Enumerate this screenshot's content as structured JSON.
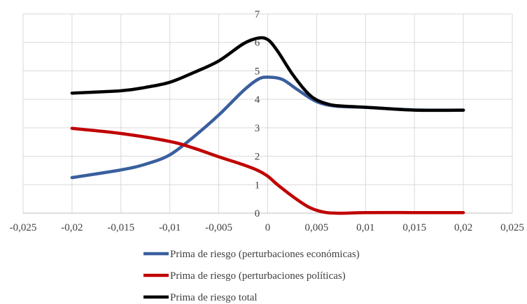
{
  "chart_data": {
    "type": "line",
    "title": "",
    "xlabel": "",
    "ylabel": "",
    "xlim": [
      -0.025,
      0.025
    ],
    "ylim": [
      0,
      7
    ],
    "x_ticks": [
      -0.025,
      -0.02,
      -0.015,
      -0.01,
      -0.005,
      0,
      0.005,
      0.01,
      0.015,
      0.02,
      0.025
    ],
    "x_tick_labels": [
      "-0,025",
      "-0,02",
      "-0,015",
      "-0,01",
      "-0,005",
      "0",
      "0,005",
      "0,01",
      "0,015",
      "0,02",
      "0,025"
    ],
    "y_ticks": [
      0,
      1,
      2,
      3,
      4,
      5,
      6,
      7
    ],
    "y_tick_labels": [
      "0",
      "1",
      "2",
      "3",
      "4",
      "5",
      "6",
      "7"
    ],
    "grid": true,
    "legend_position": "bottom",
    "series": [
      {
        "name": "Prima de riesgo (perturbaciones económicas)",
        "color": "#3a5f9e",
        "x": [
          -0.02,
          -0.015,
          -0.0125,
          -0.01,
          -0.0075,
          -0.005,
          -0.0025,
          -0.001,
          0,
          0.0015,
          0.003,
          0.005,
          0.007,
          0.01,
          0.015,
          0.02
        ],
        "y": [
          1.25,
          1.52,
          1.72,
          2.05,
          2.7,
          3.45,
          4.3,
          4.7,
          4.78,
          4.7,
          4.35,
          3.92,
          3.76,
          3.72,
          3.63,
          3.62
        ]
      },
      {
        "name": "Prima de riesgo (perturbaciones políticas)",
        "color": "#c00000",
        "x": [
          -0.02,
          -0.015,
          -0.01,
          -0.0075,
          -0.005,
          -0.0025,
          -0.001,
          0,
          0.001,
          0.0025,
          0.004,
          0.005,
          0.006,
          0.007,
          0.008,
          0.01,
          0.015,
          0.02
        ],
        "y": [
          2.98,
          2.8,
          2.52,
          2.28,
          1.98,
          1.7,
          1.5,
          1.3,
          1.0,
          0.6,
          0.25,
          0.1,
          0.02,
          0.0,
          0.0,
          0.02,
          0.02,
          0.02
        ]
      },
      {
        "name": "Prima de riesgo total",
        "color": "#000000",
        "x": [
          -0.02,
          -0.015,
          -0.0125,
          -0.01,
          -0.0075,
          -0.005,
          -0.0025,
          -0.001,
          0,
          0.001,
          0.0025,
          0.004,
          0.005,
          0.006,
          0.007,
          0.01,
          0.015,
          0.02
        ],
        "y": [
          4.22,
          4.3,
          4.42,
          4.6,
          4.95,
          5.35,
          5.95,
          6.15,
          6.1,
          5.7,
          4.9,
          4.25,
          3.98,
          3.85,
          3.78,
          3.72,
          3.62,
          3.62
        ]
      }
    ]
  }
}
